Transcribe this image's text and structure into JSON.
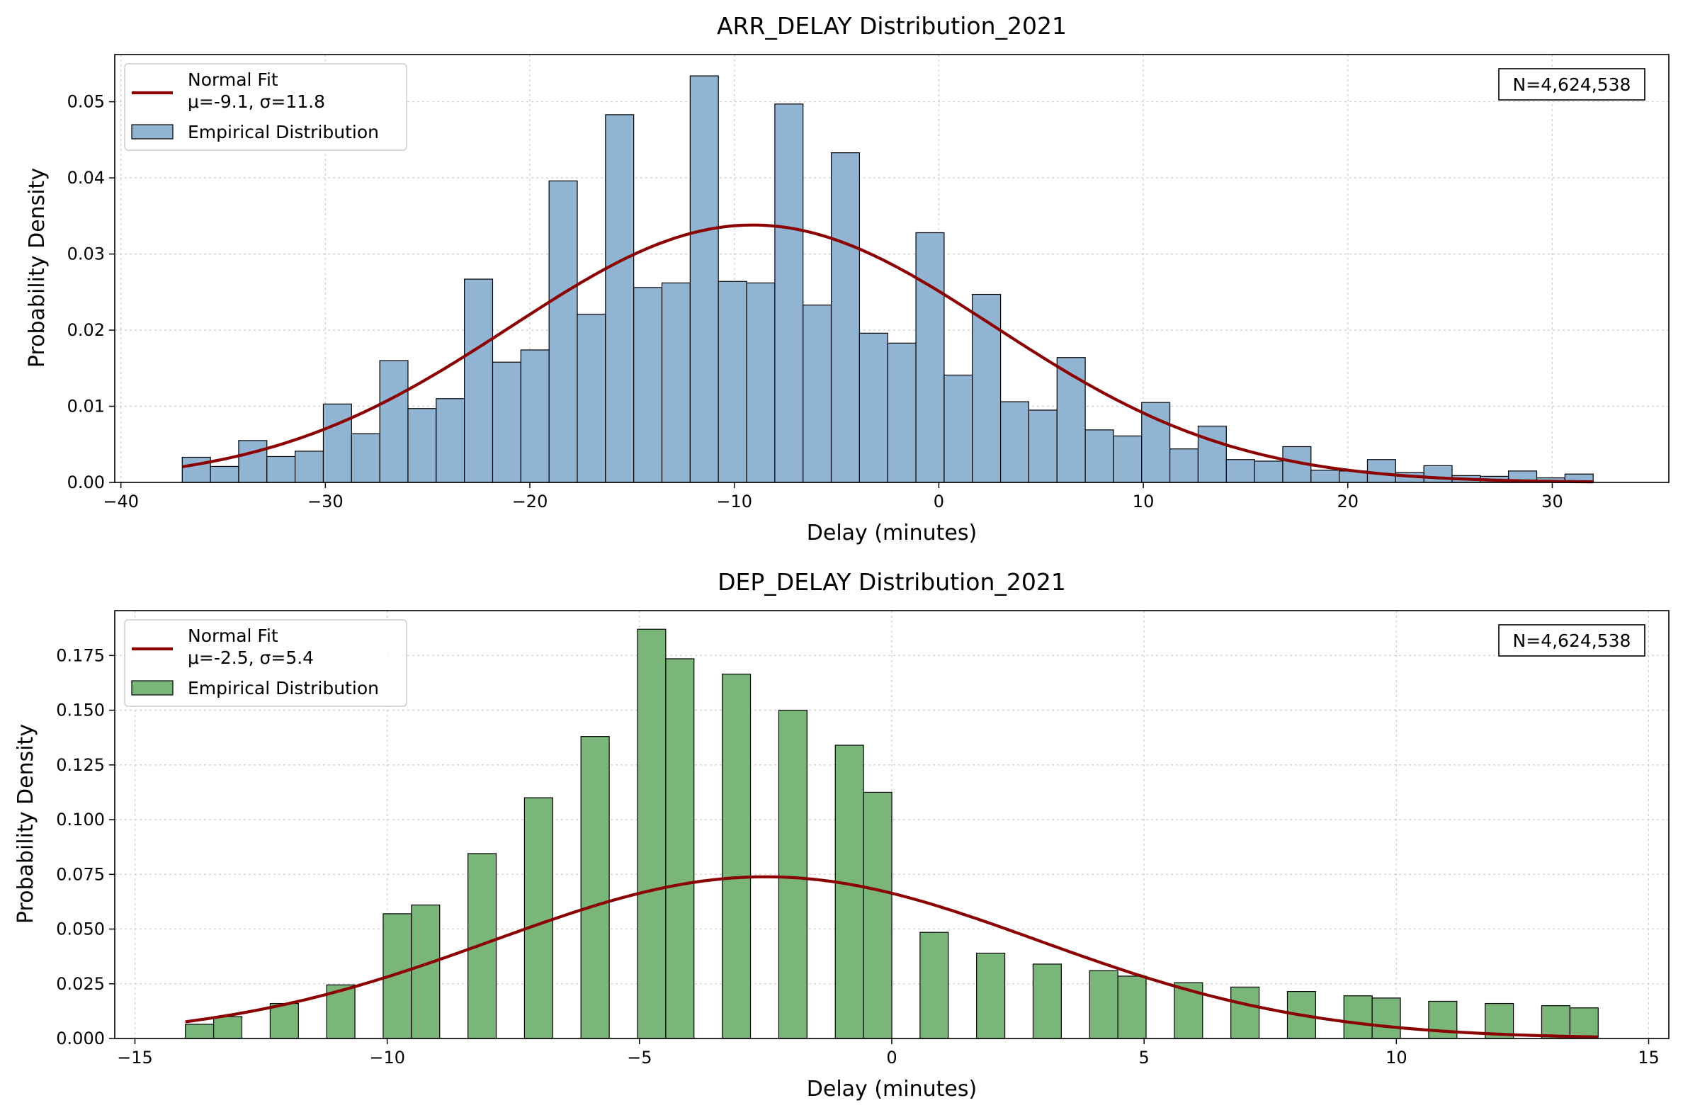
{
  "chart_data": [
    {
      "type": "bar",
      "title": "ARR_DELAY Distribution_2021",
      "xlabel": "Delay (minutes)",
      "ylabel": "Probability Density",
      "xlim": [
        -40.3,
        35.7
      ],
      "ylim": [
        0,
        0.0562
      ],
      "xticks": [
        -40,
        -30,
        -20,
        -10,
        0,
        10,
        20,
        30
      ],
      "xtick_labels": [
        "−40",
        "−30",
        "−20",
        "−10",
        "0",
        "10",
        "20",
        "30"
      ],
      "yticks": [
        0,
        0.01,
        0.02,
        0.03,
        0.04,
        0.05
      ],
      "ytick_labels": [
        "0.00",
        "0.01",
        "0.02",
        "0.03",
        "0.04",
        "0.05"
      ],
      "grid": true,
      "bar_color": "#92b4d3",
      "fit_color": "#8b0000",
      "legend": {
        "position": "top-left",
        "fit_label_line1": "Normal Fit",
        "fit_label_line2": "μ=-9.1, σ=11.8",
        "bar_label": "Empirical Distribution"
      },
      "annotation": "N=4,624,538",
      "bins": {
        "start": -37,
        "width": 1.38,
        "values": [
          0.0033,
          0.0021,
          0.0055,
          0.0034,
          0.0041,
          0.0103,
          0.0064,
          0.016,
          0.0097,
          0.011,
          0.0267,
          0.0158,
          0.0174,
          0.0396,
          0.0221,
          0.0483,
          0.0256,
          0.0262,
          0.0534,
          0.0264,
          0.0262,
          0.0497,
          0.0233,
          0.0433,
          0.0196,
          0.0183,
          0.0328,
          0.0141,
          0.0247,
          0.0106,
          0.0095,
          0.0164,
          0.0069,
          0.0061,
          0.0105,
          0.0044,
          0.0074,
          0.003,
          0.0028,
          0.0047,
          0.0016,
          0.0015,
          0.003,
          0.0013,
          0.0022,
          0.0009,
          0.0008,
          0.0015,
          0.0006,
          0.0011
        ]
      },
      "fit": {
        "mu": -9.1,
        "sigma": 11.8,
        "x_range": [
          -37,
          32
        ]
      }
    },
    {
      "type": "bar",
      "title": "DEP_DELAY Distribution_2021",
      "xlabel": "Delay (minutes)",
      "ylabel": "Probability Density",
      "xlim": [
        -15.4,
        15.4
      ],
      "ylim": [
        0,
        0.1955
      ],
      "xticks": [
        -15,
        -10,
        -5,
        0,
        5,
        10,
        15
      ],
      "xtick_labels": [
        "−15",
        "−10",
        "−5",
        "0",
        "5",
        "10",
        "15"
      ],
      "yticks": [
        0,
        0.025,
        0.05,
        0.075,
        0.1,
        0.125,
        0.15,
        0.175
      ],
      "ytick_labels": [
        "0.000",
        "0.025",
        "0.050",
        "0.075",
        "0.100",
        "0.125",
        "0.150",
        "0.175"
      ],
      "grid": true,
      "bar_color": "#7ab67a",
      "fit_color": "#8b0000",
      "legend": {
        "position": "top-left",
        "fit_label_line1": "Normal Fit",
        "fit_label_line2": "μ=-2.5, σ=5.4",
        "bar_label": "Empirical Distribution"
      },
      "annotation": "N=4,624,538",
      "bins": {
        "start": -14,
        "width": 0.56,
        "values": [
          0.0065,
          0.01,
          0,
          0.016,
          0,
          0.0245,
          0,
          0.057,
          0.061,
          0,
          0.0845,
          0,
          0.11,
          0,
          0.138,
          0,
          0.187,
          0.1735,
          0,
          0.1665,
          0,
          0.15,
          0,
          0.134,
          0.1125,
          0,
          0.0485,
          0,
          0.039,
          0,
          0.034,
          0,
          0.031,
          0.0285,
          0,
          0.0255,
          0,
          0.0235,
          0,
          0.0215,
          0,
          0.0195,
          0.0185,
          0,
          0.017,
          0,
          0.016,
          0,
          0.015,
          0.014
        ]
      },
      "fit": {
        "mu": -2.5,
        "sigma": 5.4,
        "x_range": [
          -14,
          14
        ]
      }
    }
  ]
}
